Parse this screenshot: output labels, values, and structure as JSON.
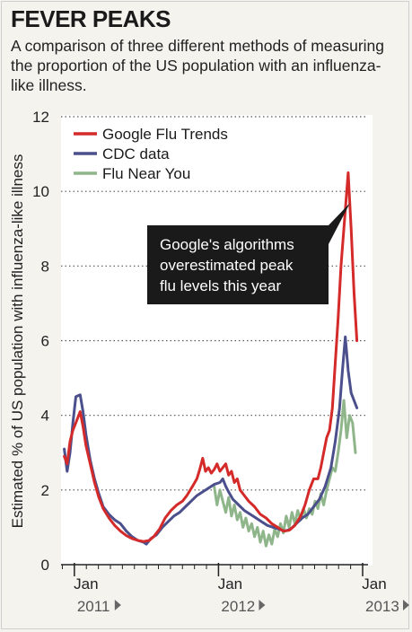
{
  "header": {
    "title": "FEVER PEAKS",
    "subtitle": "A comparison of three different methods of measuring the proportion of the US population with an influenza-like illness."
  },
  "chart_data": {
    "type": "line",
    "ylabel": "Estimated % of US population with influenza-like illness",
    "ylim": [
      0,
      12
    ],
    "yticks": [
      0,
      2,
      4,
      6,
      8,
      10,
      12
    ],
    "xticks": [
      {
        "month": "Jan",
        "year": "2011",
        "x": 2011.0
      },
      {
        "month": "Jan",
        "year": "2012",
        "x": 2012.0
      },
      {
        "month": "Jan",
        "year": "2013",
        "x": 2013.0
      }
    ],
    "grid": "horizontal dotted",
    "legend_position": "top-left",
    "annotation": {
      "lines": [
        "Google's algorithms",
        "overestimated peak",
        "flu levels this year"
      ]
    },
    "series": [
      {
        "name": "Google Flu Trends",
        "color": "#d42a2a",
        "points": [
          [
            2010.93,
            2.9
          ],
          [
            2010.95,
            2.7
          ],
          [
            2010.97,
            3.3
          ],
          [
            2010.99,
            3.6
          ],
          [
            2011.01,
            3.8
          ],
          [
            2011.04,
            4.1
          ],
          [
            2011.06,
            3.7
          ],
          [
            2011.08,
            3.2
          ],
          [
            2011.11,
            2.7
          ],
          [
            2011.14,
            2.2
          ],
          [
            2011.17,
            1.8
          ],
          [
            2011.2,
            1.5
          ],
          [
            2011.24,
            1.25
          ],
          [
            2011.28,
            1.05
          ],
          [
            2011.32,
            0.9
          ],
          [
            2011.36,
            0.78
          ],
          [
            2011.4,
            0.7
          ],
          [
            2011.44,
            0.65
          ],
          [
            2011.48,
            0.62
          ],
          [
            2011.52,
            0.65
          ],
          [
            2011.55,
            0.75
          ],
          [
            2011.59,
            0.95
          ],
          [
            2011.63,
            1.25
          ],
          [
            2011.67,
            1.45
          ],
          [
            2011.71,
            1.6
          ],
          [
            2011.75,
            1.7
          ],
          [
            2011.78,
            1.85
          ],
          [
            2011.82,
            2.1
          ],
          [
            2011.85,
            2.3
          ],
          [
            2011.87,
            2.55
          ],
          [
            2011.89,
            2.85
          ],
          [
            2011.91,
            2.5
          ],
          [
            2011.93,
            2.6
          ],
          [
            2011.95,
            2.45
          ],
          [
            2011.97,
            2.55
          ],
          [
            2011.99,
            2.7
          ],
          [
            2012.01,
            2.5
          ],
          [
            2012.03,
            2.6
          ],
          [
            2012.05,
            2.7
          ],
          [
            2012.07,
            2.4
          ],
          [
            2012.09,
            2.5
          ],
          [
            2012.11,
            2.2
          ],
          [
            2012.13,
            2.3
          ],
          [
            2012.15,
            2.0
          ],
          [
            2012.18,
            1.85
          ],
          [
            2012.21,
            1.7
          ],
          [
            2012.25,
            1.55
          ],
          [
            2012.29,
            1.35
          ],
          [
            2012.33,
            1.25
          ],
          [
            2012.37,
            1.1
          ],
          [
            2012.41,
            1.0
          ],
          [
            2012.45,
            0.9
          ],
          [
            2012.49,
            0.92
          ],
          [
            2012.53,
            1.05
          ],
          [
            2012.57,
            1.3
          ],
          [
            2012.6,
            1.6
          ],
          [
            2012.63,
            2.0
          ],
          [
            2012.66,
            2.3
          ],
          [
            2012.69,
            2.3
          ],
          [
            2012.71,
            2.6
          ],
          [
            2012.73,
            3.0
          ],
          [
            2012.75,
            3.4
          ],
          [
            2012.77,
            3.6
          ],
          [
            2012.79,
            4.2
          ],
          [
            2012.81,
            5.4
          ],
          [
            2012.83,
            6.6
          ],
          [
            2012.85,
            8.0
          ],
          [
            2012.88,
            9.5
          ],
          [
            2012.9,
            10.5
          ],
          [
            2012.92,
            9.0
          ],
          [
            2012.94,
            7.3
          ],
          [
            2012.96,
            6.0
          ]
        ]
      },
      {
        "name": "CDC data",
        "color": "#4b4f8c",
        "points": [
          [
            2010.93,
            3.1
          ],
          [
            2010.95,
            2.5
          ],
          [
            2010.97,
            3.0
          ],
          [
            2010.99,
            3.8
          ],
          [
            2011.01,
            4.5
          ],
          [
            2011.04,
            4.55
          ],
          [
            2011.06,
            4.1
          ],
          [
            2011.08,
            3.5
          ],
          [
            2011.11,
            2.8
          ],
          [
            2011.14,
            2.3
          ],
          [
            2011.17,
            1.9
          ],
          [
            2011.2,
            1.55
          ],
          [
            2011.24,
            1.35
          ],
          [
            2011.28,
            1.2
          ],
          [
            2011.32,
            1.1
          ],
          [
            2011.36,
            0.9
          ],
          [
            2011.4,
            0.75
          ],
          [
            2011.44,
            0.65
          ],
          [
            2011.48,
            0.6
          ],
          [
            2011.5,
            0.55
          ],
          [
            2011.53,
            0.7
          ],
          [
            2011.57,
            0.8
          ],
          [
            2011.61,
            1.0
          ],
          [
            2011.65,
            1.15
          ],
          [
            2011.69,
            1.3
          ],
          [
            2011.73,
            1.4
          ],
          [
            2011.77,
            1.55
          ],
          [
            2011.81,
            1.7
          ],
          [
            2011.85,
            1.85
          ],
          [
            2011.89,
            1.95
          ],
          [
            2011.93,
            2.05
          ],
          [
            2011.97,
            2.15
          ],
          [
            2012.01,
            2.2
          ],
          [
            2012.03,
            2.3
          ],
          [
            2012.05,
            2.1
          ],
          [
            2012.07,
            1.95
          ],
          [
            2012.1,
            1.75
          ],
          [
            2012.14,
            1.6
          ],
          [
            2012.18,
            1.45
          ],
          [
            2012.22,
            1.35
          ],
          [
            2012.26,
            1.25
          ],
          [
            2012.3,
            1.15
          ],
          [
            2012.34,
            1.05
          ],
          [
            2012.38,
            1.0
          ],
          [
            2012.42,
            0.95
          ],
          [
            2012.46,
            0.9
          ],
          [
            2012.5,
            0.95
          ],
          [
            2012.54,
            1.1
          ],
          [
            2012.58,
            1.25
          ],
          [
            2012.62,
            1.35
          ],
          [
            2012.66,
            1.55
          ],
          [
            2012.7,
            1.75
          ],
          [
            2012.74,
            2.1
          ],
          [
            2012.78,
            2.6
          ],
          [
            2012.81,
            3.3
          ],
          [
            2012.84,
            4.2
          ],
          [
            2012.86,
            5.2
          ],
          [
            2012.88,
            6.1
          ],
          [
            2012.9,
            5.2
          ],
          [
            2012.92,
            4.6
          ],
          [
            2012.94,
            4.4
          ],
          [
            2012.96,
            4.2
          ]
        ]
      },
      {
        "name": "Flu Near You",
        "color": "#8fb58a",
        "points": [
          [
            2011.97,
            2.1
          ],
          [
            2011.99,
            1.6
          ],
          [
            2012.01,
            2.0
          ],
          [
            2012.03,
            1.7
          ],
          [
            2012.05,
            1.4
          ],
          [
            2012.07,
            1.8
          ],
          [
            2012.09,
            1.3
          ],
          [
            2012.11,
            1.6
          ],
          [
            2012.13,
            1.2
          ],
          [
            2012.15,
            1.4
          ],
          [
            2012.17,
            1.0
          ],
          [
            2012.19,
            1.25
          ],
          [
            2012.21,
            0.9
          ],
          [
            2012.23,
            1.1
          ],
          [
            2012.25,
            0.75
          ],
          [
            2012.27,
            1.0
          ],
          [
            2012.29,
            0.6
          ],
          [
            2012.31,
            0.9
          ],
          [
            2012.33,
            0.5
          ],
          [
            2012.35,
            0.8
          ],
          [
            2012.37,
            0.55
          ],
          [
            2012.39,
            0.95
          ],
          [
            2012.41,
            0.75
          ],
          [
            2012.43,
            1.1
          ],
          [
            2012.45,
            0.85
          ],
          [
            2012.47,
            1.3
          ],
          [
            2012.49,
            1.0
          ],
          [
            2012.51,
            1.4
          ],
          [
            2012.53,
            1.1
          ],
          [
            2012.55,
            1.45
          ],
          [
            2012.57,
            1.2
          ],
          [
            2012.59,
            1.5
          ],
          [
            2012.61,
            1.25
          ],
          [
            2012.63,
            1.5
          ],
          [
            2012.65,
            1.35
          ],
          [
            2012.67,
            1.7
          ],
          [
            2012.69,
            1.5
          ],
          [
            2012.71,
            1.9
          ],
          [
            2012.73,
            1.6
          ],
          [
            2012.75,
            2.0
          ],
          [
            2012.77,
            2.3
          ],
          [
            2012.79,
            2.6
          ],
          [
            2012.81,
            2.5
          ],
          [
            2012.83,
            3.0
          ],
          [
            2012.85,
            3.6
          ],
          [
            2012.87,
            4.4
          ],
          [
            2012.89,
            3.4
          ],
          [
            2012.91,
            4.0
          ],
          [
            2012.93,
            3.8
          ],
          [
            2012.95,
            3.0
          ]
        ]
      }
    ]
  }
}
